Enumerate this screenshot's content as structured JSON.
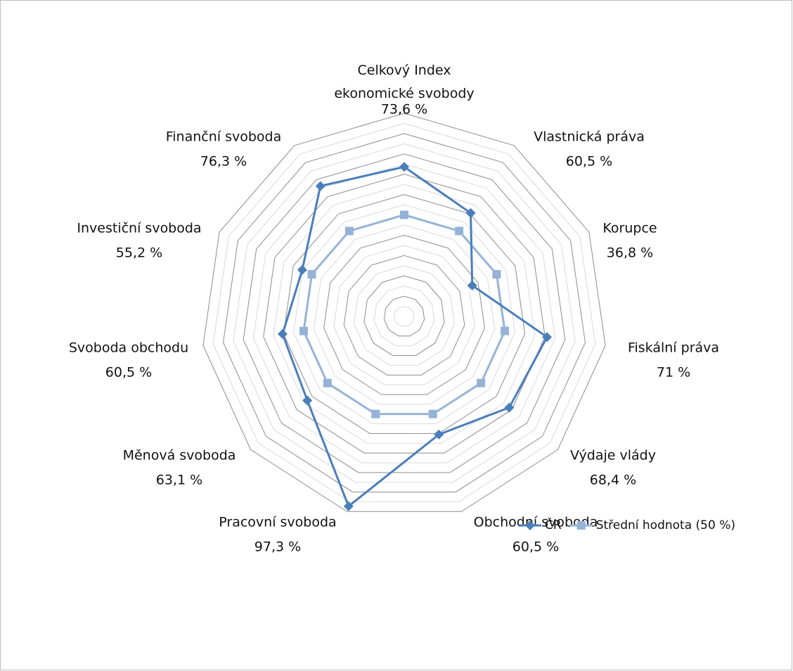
{
  "chart_data": {
    "type": "radar",
    "categories": [
      "Celkový Index ekonomické svobody",
      "Vlastnická práva",
      "Korupce",
      "Fiskální práva",
      "Výdaje vlády",
      "Obchodní svoboda",
      "Pracovní svoboda",
      "Měnová svoboda",
      "Svoboda obchodu",
      "Investiční svoboda",
      "Finanční svoboda"
    ],
    "series": [
      {
        "name": "ČR",
        "color": "#4a7ebb",
        "marker": "diamond",
        "values": [
          73.6,
          60.5,
          36.8,
          71,
          68.4,
          60.5,
          97.3,
          63.1,
          60.5,
          55.2,
          76.3
        ],
        "value_labels": [
          "73,6 %",
          "60,5 %",
          "36,8 %",
          "71 %",
          "68,4 %",
          "60,5 %",
          "97,3 %",
          "63,1 %",
          "60,5 %",
          "55,2 %",
          "76,3 %"
        ]
      },
      {
        "name": "Střední hodnota (50 %)",
        "color": "#95b3d7",
        "marker": "square",
        "values": [
          50,
          50,
          50,
          50,
          50,
          50,
          50,
          50,
          50,
          50,
          50
        ]
      }
    ],
    "ylim": [
      0,
      100
    ],
    "yticks": [
      0,
      5,
      10,
      15,
      20,
      25,
      30,
      35,
      40,
      45,
      50,
      55,
      60,
      65,
      70,
      75,
      80,
      85,
      90,
      95,
      100
    ],
    "grid": true,
    "legend": "bottom-right"
  }
}
